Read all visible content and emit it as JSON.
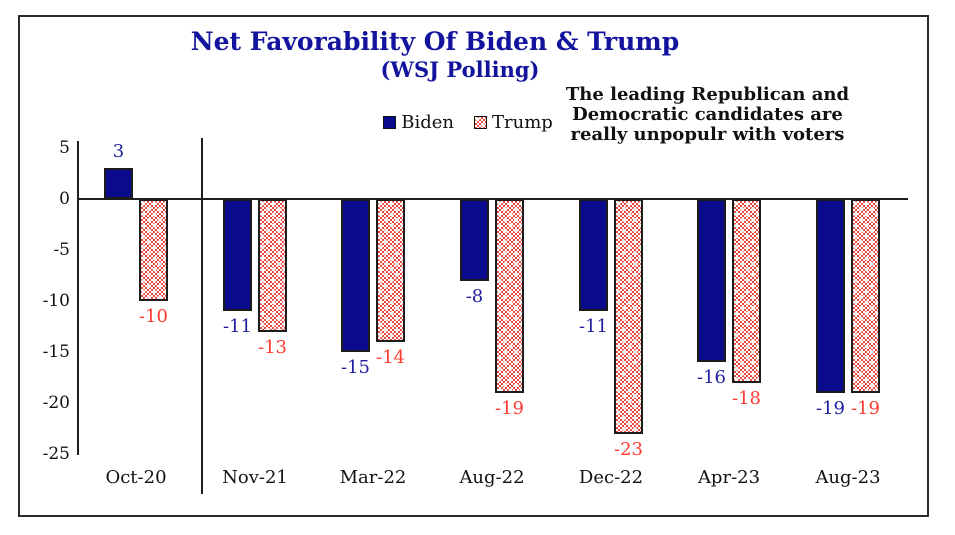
{
  "title": "Net Favorability Of Biden & Trump",
  "subtitle": "(WSJ Polling)",
  "legend": {
    "items": [
      {
        "label": "Biden",
        "swatch": "navy-solid-square"
      },
      {
        "label": "Trump",
        "swatch": "red-dotted-pattern-square"
      }
    ]
  },
  "annotation": {
    "line1": "The leading Republican and",
    "line2": "Democratic candidates are",
    "line3": "really unpopulr with voters"
  },
  "colors": {
    "bar_navy": "#0a0a8c",
    "title_navy": "#13139e",
    "biden_label_navy": "#1e1e9e",
    "trump_label_red": "#ff3a30",
    "trump_pattern_red": "#e6493f",
    "axis_black": "#1f1f1f"
  },
  "chart_data": {
    "type": "bar",
    "title": "Net Favorability Of Biden & Trump",
    "subtitle": "(WSJ Polling)",
    "categories": [
      "Oct-20",
      "Nov-21",
      "Mar-22",
      "Aug-22",
      "Dec-22",
      "Apr-23",
      "Aug-23"
    ],
    "series": [
      {
        "name": "Biden",
        "values": [
          3,
          -11,
          -15,
          -8,
          -11,
          -16,
          -19
        ]
      },
      {
        "name": "Trump",
        "values": [
          -10,
          -13,
          -14,
          -19,
          -23,
          -18,
          -19
        ]
      }
    ],
    "yticks": [
      5,
      0,
      -5,
      -10,
      -15,
      -20,
      -25
    ],
    "ylim": [
      -25,
      5
    ],
    "grid": false,
    "legend_position": "top-center",
    "notes": "vertical separator line between Oct-20 group and later groups; data labels shown at bar ends"
  }
}
